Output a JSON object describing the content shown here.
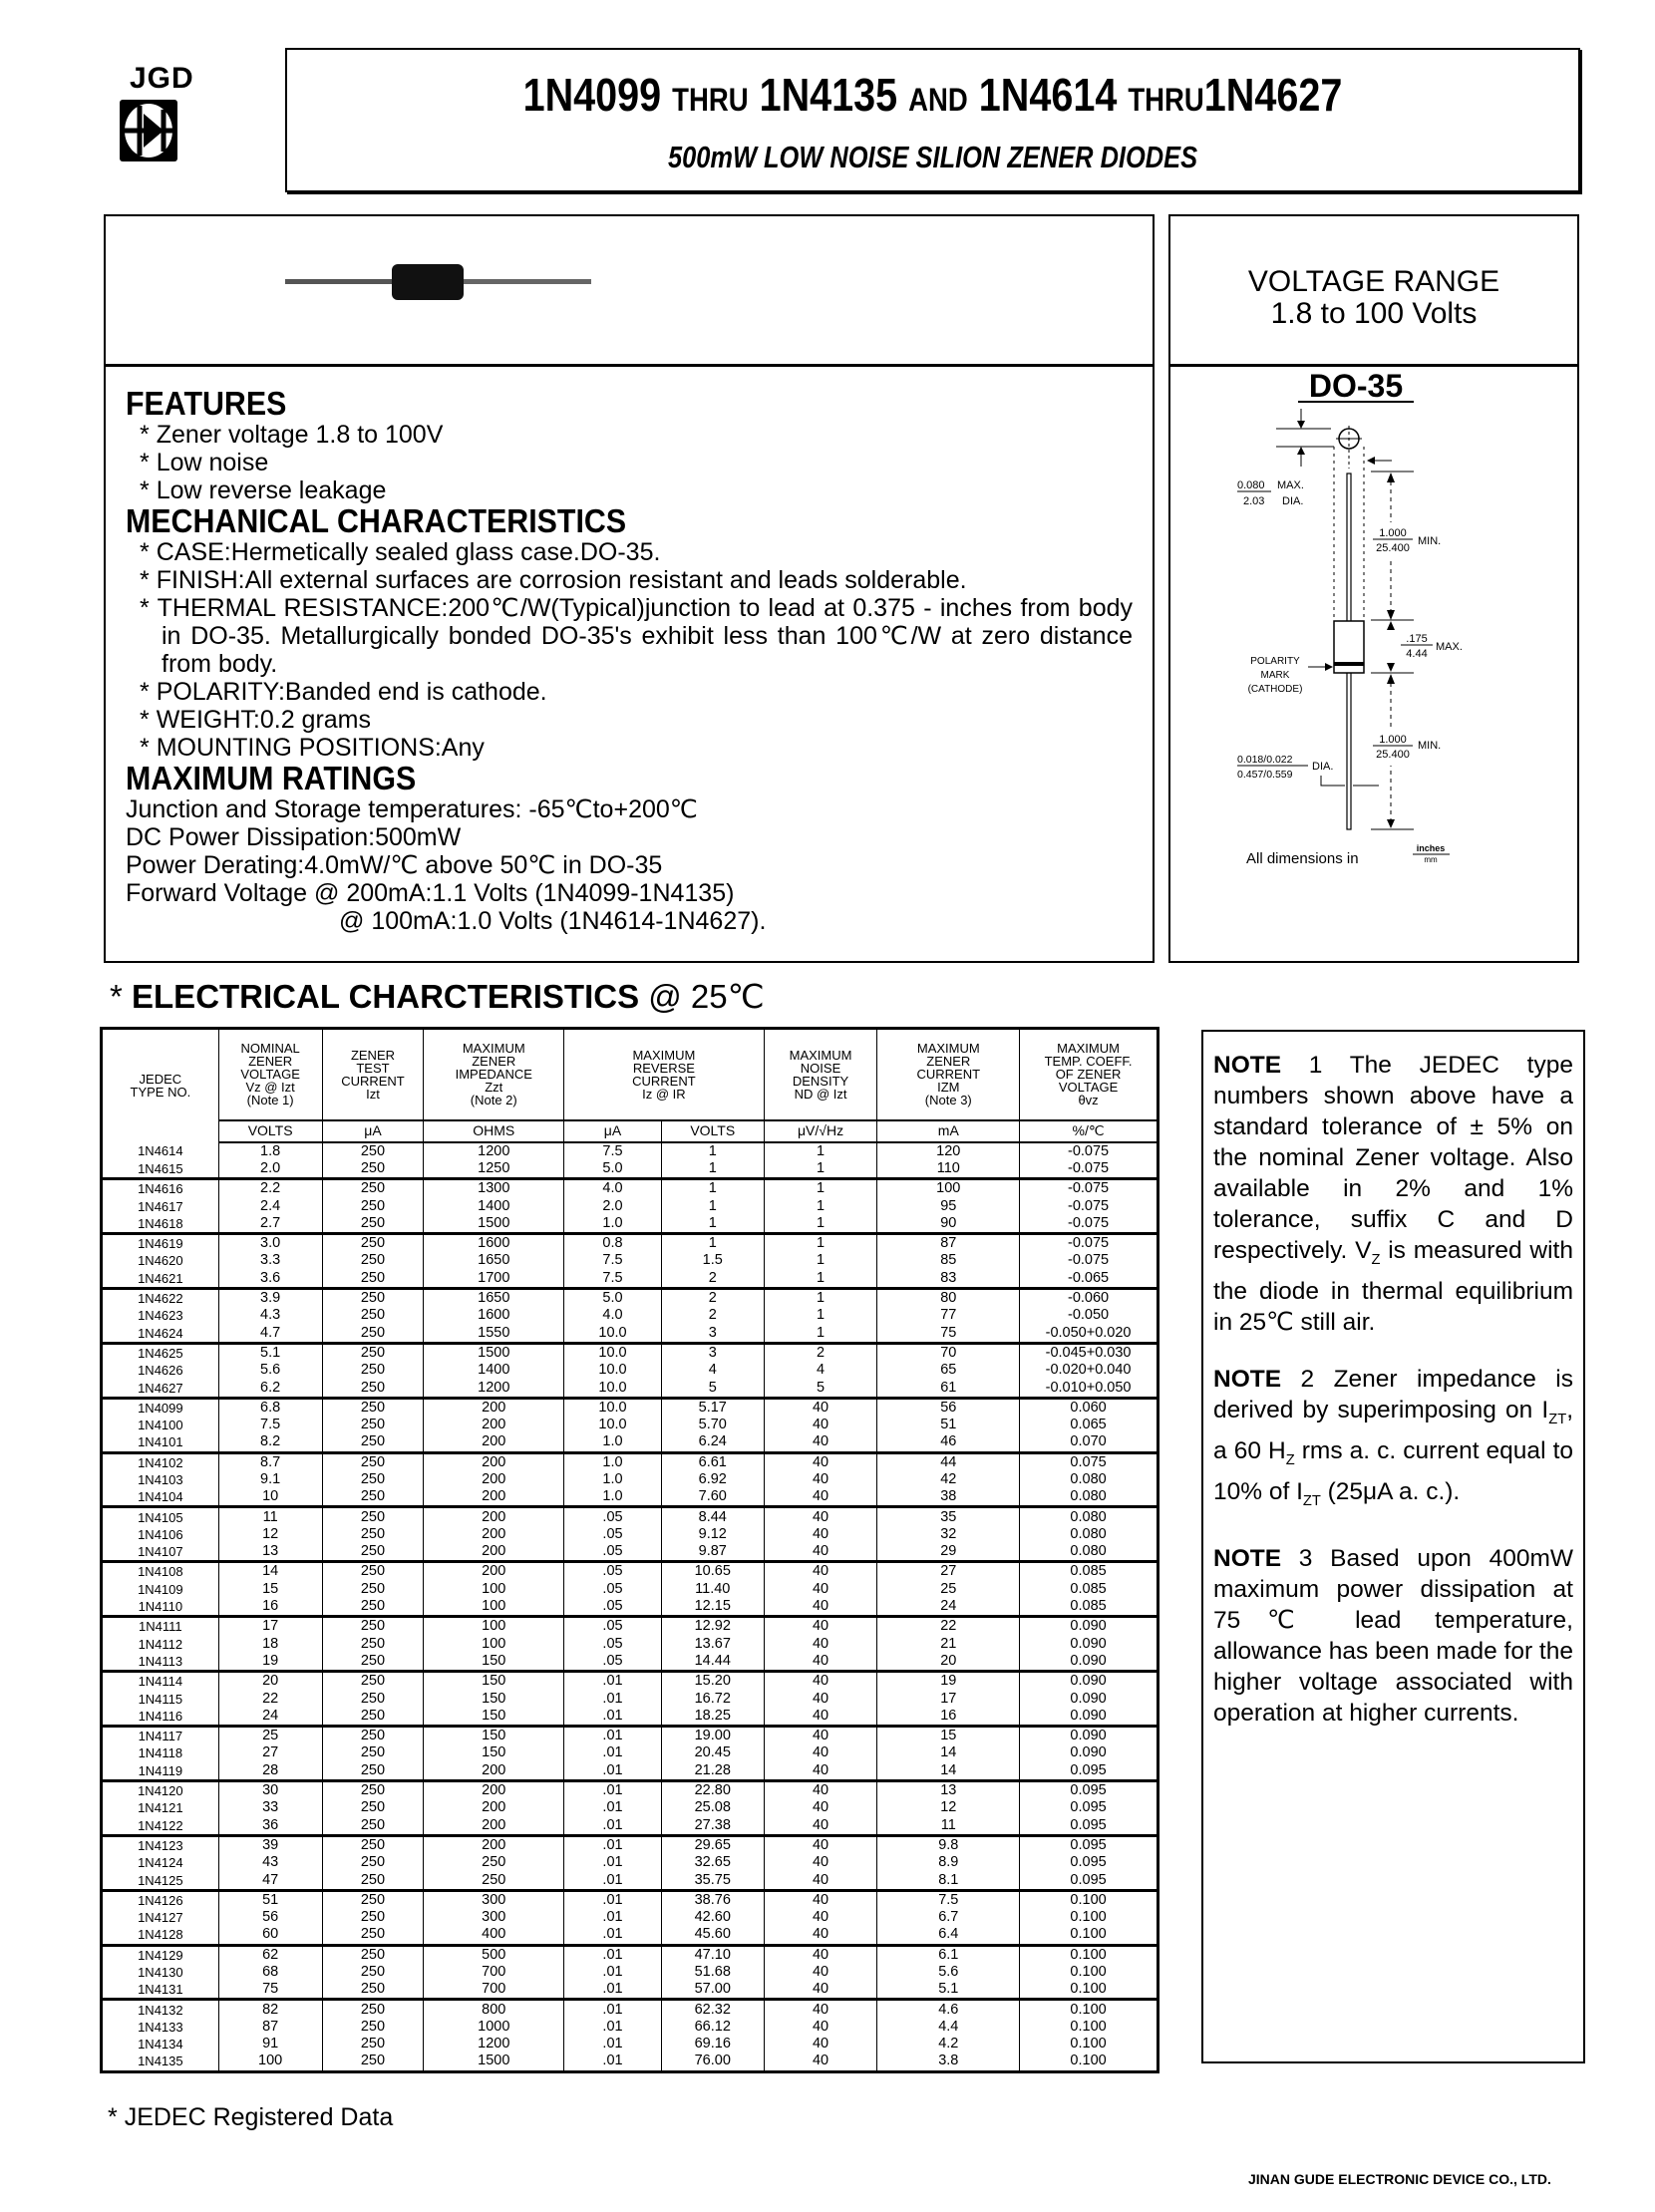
{
  "logo": {
    "text": "JGD"
  },
  "header": {
    "title_parts": [
      "1N4099",
      "THRU",
      "1N4135",
      "AND",
      "1N4614",
      "THRU",
      "1N4627"
    ],
    "subtitle": "500mW LOW NOISE SILION ZENER DIODES"
  },
  "voltage_range": {
    "label": "VOLTAGE RANGE",
    "value": "1.8 to 100 Volts"
  },
  "package": {
    "name": "DO-35",
    "dims": {
      "lead_dia_in": "0.080",
      "lead_dia_mm": "2.03",
      "max_dia": "MAX.",
      "dia": "DIA.",
      "lead_len_in": "1.000",
      "lead_len_mm": "25.400",
      "min": "MIN.",
      "body_len_in": ".175",
      "body_len_mm": "4.44",
      "max": "MAX.",
      "wire_dia_in": "0.018/0.022",
      "wire_dia_mm": "0.457/0.559",
      "polarity": [
        "POLARITY",
        "MARK",
        "(CATHODE)"
      ],
      "units_label": "All dimensions in",
      "units_top": "inches",
      "units_bottom": "mm"
    }
  },
  "features": {
    "heading": "FEATURES",
    "items": [
      "Zener voltage 1.8 to 100V",
      "Low noise",
      "Low reverse leakage"
    ]
  },
  "mechanical": {
    "heading": "MECHANICAL CHARACTERISTICS",
    "items": [
      "CASE:Hermetically sealed glass case.DO-35.",
      "FINISH:All external surfaces are corrosion resistant and leads solderable.",
      "THERMAL RESISTANCE:200℃/W(Typical)junction to lead at 0.375 - inches from body in DO-35. Metallurgically bonded DO-35's exhibit less than 100℃/W at zero distance from body.",
      "POLARITY:Banded end is cathode.",
      "WEIGHT:0.2 grams",
      "MOUNTING POSITIONS:Any"
    ]
  },
  "ratings": {
    "heading": "MAXIMUM RATINGS",
    "lines": [
      "Junction and Storage temperatures: -65℃to+200℃",
      "DC Power Dissipation:500mW",
      "Power Derating:4.0mW/℃ above 50℃ in DO-35",
      "Forward Voltage @ 200mA:1.1 Volts (1N4099-1N4135)",
      "@ 100mA:1.0 Volts (1N4614-1N4627)."
    ]
  },
  "electrical": {
    "title": "ELECTRICAL CHARCTERISTICS",
    "temp": "@ 25℃",
    "headers": [
      "JEDEC\nTYPE NO.",
      "NOMINAL\nZENER\nVOLTAGE\nVz @ Izt\n(Note 1)",
      "ZENER\nTEST\nCURRENT\nIzt",
      "MAXIMUM\nZENER\nIMPEDANCE\nZzt\n(Note 2)",
      "MAXIMUM\nREVERSE\nCURRENT\nIz @ IR",
      "MAXIMUM\nNOISE\nDENSITY\nND @ Izt",
      "MAXIMUM\nZENER\nCURRENT\nIZM\n(Note 3)",
      "MAXIMUM\nTEMP. COEFF.\nOF ZENER\nVOLTAGE\nθvz"
    ],
    "units": [
      "VOLTS",
      "μA",
      "OHMS",
      "μA",
      "VOLTS",
      "μV/√Hz",
      "mA",
      "%/℃"
    ],
    "rows": [
      [
        "1N4614",
        "1.8",
        "250",
        "1200",
        "7.5",
        "1",
        "1",
        "120",
        "-0.075"
      ],
      [
        "1N4615",
        "2.0",
        "250",
        "1250",
        "5.0",
        "1",
        "1",
        "110",
        "-0.075"
      ],
      [
        "1N4616",
        "2.2",
        "250",
        "1300",
        "4.0",
        "1",
        "1",
        "100",
        "-0.075"
      ],
      [
        "1N4617",
        "2.4",
        "250",
        "1400",
        "2.0",
        "1",
        "1",
        "95",
        "-0.075"
      ],
      [
        "1N4618",
        "2.7",
        "250",
        "1500",
        "1.0",
        "1",
        "1",
        "90",
        "-0.075"
      ],
      [
        "1N4619",
        "3.0",
        "250",
        "1600",
        "0.8",
        "1",
        "1",
        "87",
        "-0.075"
      ],
      [
        "1N4620",
        "3.3",
        "250",
        "1650",
        "7.5",
        "1.5",
        "1",
        "85",
        "-0.075"
      ],
      [
        "1N4621",
        "3.6",
        "250",
        "1700",
        "7.5",
        "2",
        "1",
        "83",
        "-0.065"
      ],
      [
        "1N4622",
        "3.9",
        "250",
        "1650",
        "5.0",
        "2",
        "1",
        "80",
        "-0.060"
      ],
      [
        "1N4623",
        "4.3",
        "250",
        "1600",
        "4.0",
        "2",
        "1",
        "77",
        "-0.050"
      ],
      [
        "1N4624",
        "4.7",
        "250",
        "1550",
        "10.0",
        "3",
        "1",
        "75",
        "-0.050+0.020"
      ],
      [
        "1N4625",
        "5.1",
        "250",
        "1500",
        "10.0",
        "3",
        "2",
        "70",
        "-0.045+0.030"
      ],
      [
        "1N4626",
        "5.6",
        "250",
        "1400",
        "10.0",
        "4",
        "4",
        "65",
        "-0.020+0.040"
      ],
      [
        "1N4627",
        "6.2",
        "250",
        "1200",
        "10.0",
        "5",
        "5",
        "61",
        "-0.010+0.050"
      ],
      [
        "1N4099",
        "6.8",
        "250",
        "200",
        "10.0",
        "5.17",
        "40",
        "56",
        "0.060"
      ],
      [
        "1N4100",
        "7.5",
        "250",
        "200",
        "10.0",
        "5.70",
        "40",
        "51",
        "0.065"
      ],
      [
        "1N4101",
        "8.2",
        "250",
        "200",
        "1.0",
        "6.24",
        "40",
        "46",
        "0.070"
      ],
      [
        "1N4102",
        "8.7",
        "250",
        "200",
        "1.0",
        "6.61",
        "40",
        "44",
        "0.075"
      ],
      [
        "1N4103",
        "9.1",
        "250",
        "200",
        "1.0",
        "6.92",
        "40",
        "42",
        "0.080"
      ],
      [
        "1N4104",
        "10",
        "250",
        "200",
        "1.0",
        "7.60",
        "40",
        "38",
        "0.080"
      ],
      [
        "1N4105",
        "11",
        "250",
        "200",
        ".05",
        "8.44",
        "40",
        "35",
        "0.080"
      ],
      [
        "1N4106",
        "12",
        "250",
        "200",
        ".05",
        "9.12",
        "40",
        "32",
        "0.080"
      ],
      [
        "1N4107",
        "13",
        "250",
        "200",
        ".05",
        "9.87",
        "40",
        "29",
        "0.080"
      ],
      [
        "1N4108",
        "14",
        "250",
        "200",
        ".05",
        "10.65",
        "40",
        "27",
        "0.085"
      ],
      [
        "1N4109",
        "15",
        "250",
        "100",
        ".05",
        "11.40",
        "40",
        "25",
        "0.085"
      ],
      [
        "1N4110",
        "16",
        "250",
        "100",
        ".05",
        "12.15",
        "40",
        "24",
        "0.085"
      ],
      [
        "1N4111",
        "17",
        "250",
        "100",
        ".05",
        "12.92",
        "40",
        "22",
        "0.090"
      ],
      [
        "1N4112",
        "18",
        "250",
        "100",
        ".05",
        "13.67",
        "40",
        "21",
        "0.090"
      ],
      [
        "1N4113",
        "19",
        "250",
        "150",
        ".05",
        "14.44",
        "40",
        "20",
        "0.090"
      ],
      [
        "1N4114",
        "20",
        "250",
        "150",
        ".01",
        "15.20",
        "40",
        "19",
        "0.090"
      ],
      [
        "1N4115",
        "22",
        "250",
        "150",
        ".01",
        "16.72",
        "40",
        "17",
        "0.090"
      ],
      [
        "1N4116",
        "24",
        "250",
        "150",
        ".01",
        "18.25",
        "40",
        "16",
        "0.090"
      ],
      [
        "1N4117",
        "25",
        "250",
        "150",
        ".01",
        "19.00",
        "40",
        "15",
        "0.090"
      ],
      [
        "1N4118",
        "27",
        "250",
        "150",
        ".01",
        "20.45",
        "40",
        "14",
        "0.090"
      ],
      [
        "1N4119",
        "28",
        "250",
        "200",
        ".01",
        "21.28",
        "40",
        "14",
        "0.095"
      ],
      [
        "1N4120",
        "30",
        "250",
        "200",
        ".01",
        "22.80",
        "40",
        "13",
        "0.095"
      ],
      [
        "1N4121",
        "33",
        "250",
        "200",
        ".01",
        "25.08",
        "40",
        "12",
        "0.095"
      ],
      [
        "1N4122",
        "36",
        "250",
        "200",
        ".01",
        "27.38",
        "40",
        "11",
        "0.095"
      ],
      [
        "1N4123",
        "39",
        "250",
        "200",
        ".01",
        "29.65",
        "40",
        "9.8",
        "0.095"
      ],
      [
        "1N4124",
        "43",
        "250",
        "250",
        ".01",
        "32.65",
        "40",
        "8.9",
        "0.095"
      ],
      [
        "1N4125",
        "47",
        "250",
        "250",
        ".01",
        "35.75",
        "40",
        "8.1",
        "0.095"
      ],
      [
        "1N4126",
        "51",
        "250",
        "300",
        ".01",
        "38.76",
        "40",
        "7.5",
        "0.100"
      ],
      [
        "1N4127",
        "56",
        "250",
        "300",
        ".01",
        "42.60",
        "40",
        "6.7",
        "0.100"
      ],
      [
        "1N4128",
        "60",
        "250",
        "400",
        ".01",
        "45.60",
        "40",
        "6.4",
        "0.100"
      ],
      [
        "1N4129",
        "62",
        "250",
        "500",
        ".01",
        "47.10",
        "40",
        "6.1",
        "0.100"
      ],
      [
        "1N4130",
        "68",
        "250",
        "700",
        ".01",
        "51.68",
        "40",
        "5.6",
        "0.100"
      ],
      [
        "1N4131",
        "75",
        "250",
        "700",
        ".01",
        "57.00",
        "40",
        "5.1",
        "0.100"
      ],
      [
        "1N4132",
        "82",
        "250",
        "800",
        ".01",
        "62.32",
        "40",
        "4.6",
        "0.100"
      ],
      [
        "1N4133",
        "87",
        "250",
        "1000",
        ".01",
        "66.12",
        "40",
        "4.4",
        "0.100"
      ],
      [
        "1N4134",
        "91",
        "250",
        "1200",
        ".01",
        "69.16",
        "40",
        "4.2",
        "0.100"
      ],
      [
        "1N4135",
        "100",
        "250",
        "1500",
        ".01",
        "76.00",
        "40",
        "3.8",
        "0.100"
      ]
    ]
  },
  "notes": {
    "n1": {
      "label": "NOTE",
      "num": "1",
      "a": "The JEDEC type numbers shown above have a standard tolerance of ± 5% on the nominal Zener voltage. Also available in 2% and 1% tolerance, suffix C and D respectively. V",
      "sub": "Z",
      "b": " is measured with the diode in thermal equilibrium in 25℃ still air."
    },
    "n2": {
      "label": "NOTE",
      "num": "2",
      "a": "Zener impedance is derived by superimposing on I",
      "sub1": "ZT",
      "b": ", a 60 H",
      "sub2": "Z",
      "c": " rms a. c. current equal to 10% of I",
      "sub3": "ZT",
      "d": " (25μA a. c.)."
    },
    "n3": {
      "label": "NOTE",
      "num": "3",
      "a": "Based upon 400mW maximum power dissipation at 75℃ lead temperature, allowance has been made for the higher voltage associated with operation at higher currents."
    }
  },
  "footnote": "JEDEC Registered Data",
  "bullet": "*",
  "footer": "JINAN GUDE ELECTRONIC DEVICE CO., LTD."
}
